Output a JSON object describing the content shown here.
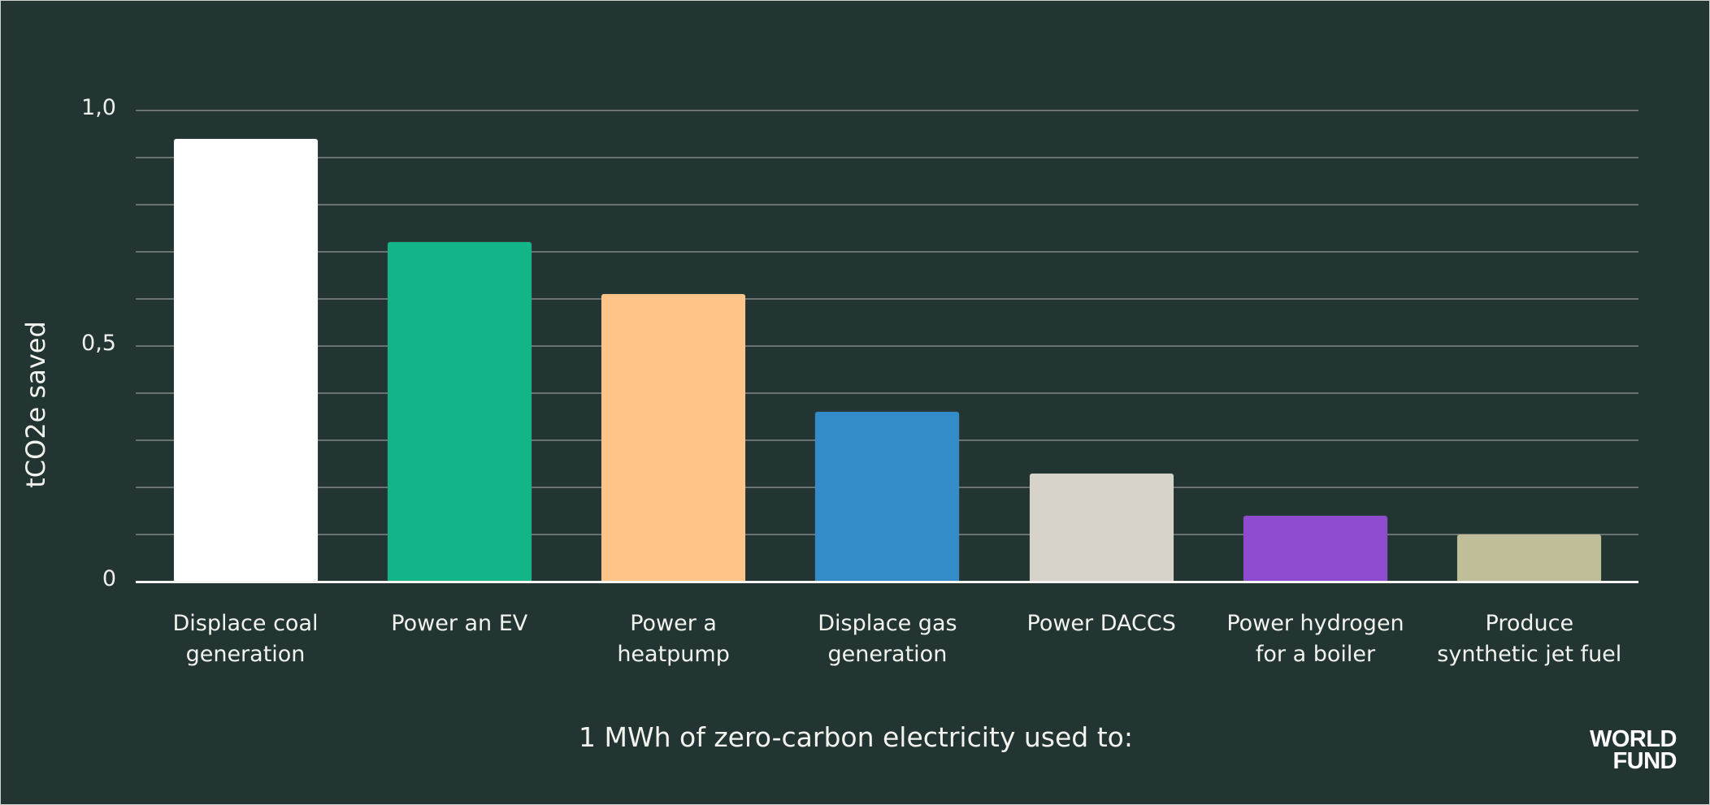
{
  "chart_data": {
    "type": "bar",
    "title": "",
    "xlabel": "1 MWh of zero-carbon electricity used to:",
    "ylabel": "tCO2e saved",
    "ylim": [
      0,
      1.0
    ],
    "yticks": [
      "0",
      "0,5",
      "1,0"
    ],
    "grid": true,
    "grid_step": 0.1,
    "legend": "none",
    "categories": [
      "Displace coal\ngeneration",
      "Power an EV",
      "Power a\nheatpump",
      "Displace gas\ngeneration",
      "Power DACCS",
      "Power hydrogen\nfor a boiler",
      "Produce\nsynthetic jet fuel"
    ],
    "values": [
      0.94,
      0.72,
      0.61,
      0.36,
      0.23,
      0.14,
      0.1
    ],
    "colors": [
      "#ffffff",
      "#12b488",
      "#ffc588",
      "#338cc9",
      "#d7d3cb",
      "#8f4bd0",
      "#c0be98"
    ]
  },
  "ui": {
    "background": "#223532",
    "gridline_color": "#6f7572",
    "logo": {
      "line1": "WORLD",
      "line2": "FUND"
    }
  }
}
